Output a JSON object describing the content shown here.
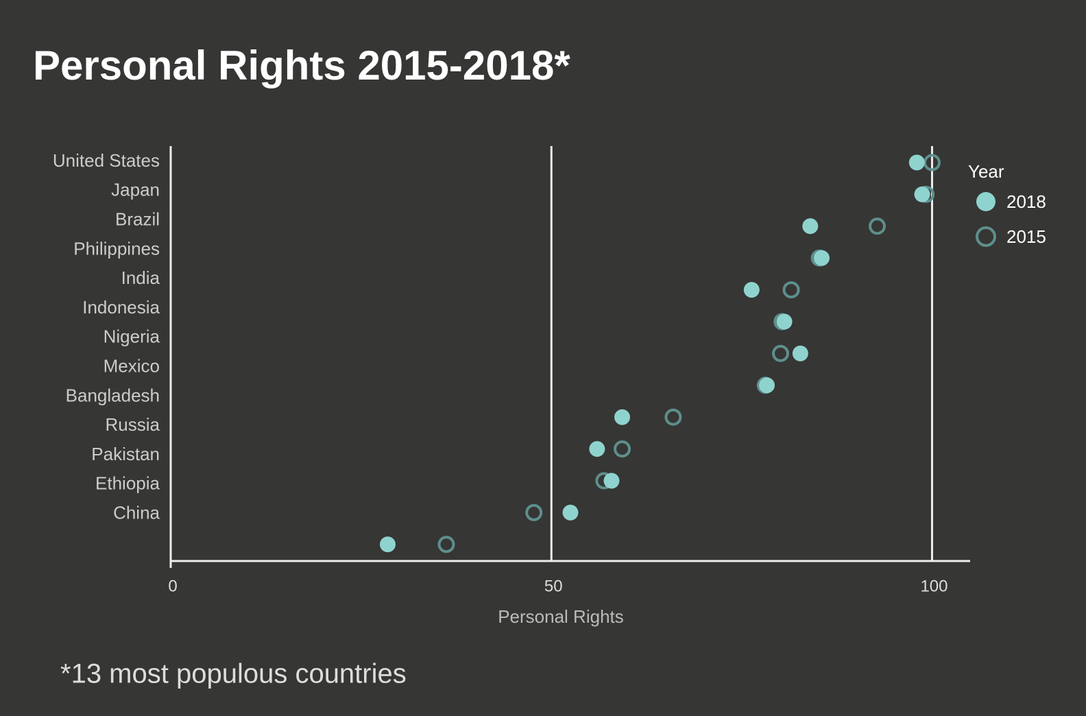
{
  "chart_data": {
    "type": "dot",
    "title": "Personal Rights 2015-2018*",
    "footnote": "*13 most populous countries",
    "x_label": "Personal Rights",
    "legend_title": "Year",
    "legend_position": "right",
    "categories": [
      "United States",
      "Japan",
      "Brazil",
      "Philippines",
      "India",
      "Indonesia",
      "Nigeria",
      "Mexico",
      "Bangladesh",
      "Russia",
      "Pakistan",
      "Ethiopia",
      "China"
    ],
    "series": [
      {
        "name": "2018",
        "color": "#8fd3cf",
        "filled": true,
        "values": [
          98,
          98.7,
          84,
          85.5,
          76.3,
          80.6,
          82.7,
          78.3,
          59.3,
          56,
          57.9,
          52.5,
          28.5
        ]
      },
      {
        "name": "2015",
        "color": "#5e8f8c",
        "filled": false,
        "values": [
          100,
          99.2,
          92.8,
          85.2,
          81.5,
          80.3,
          80.1,
          78.1,
          66,
          59.3,
          56.9,
          47.7,
          36.2
        ]
      }
    ],
    "xlim": [
      0,
      105
    ],
    "xticks": [
      0,
      50,
      100
    ],
    "grid": true
  }
}
